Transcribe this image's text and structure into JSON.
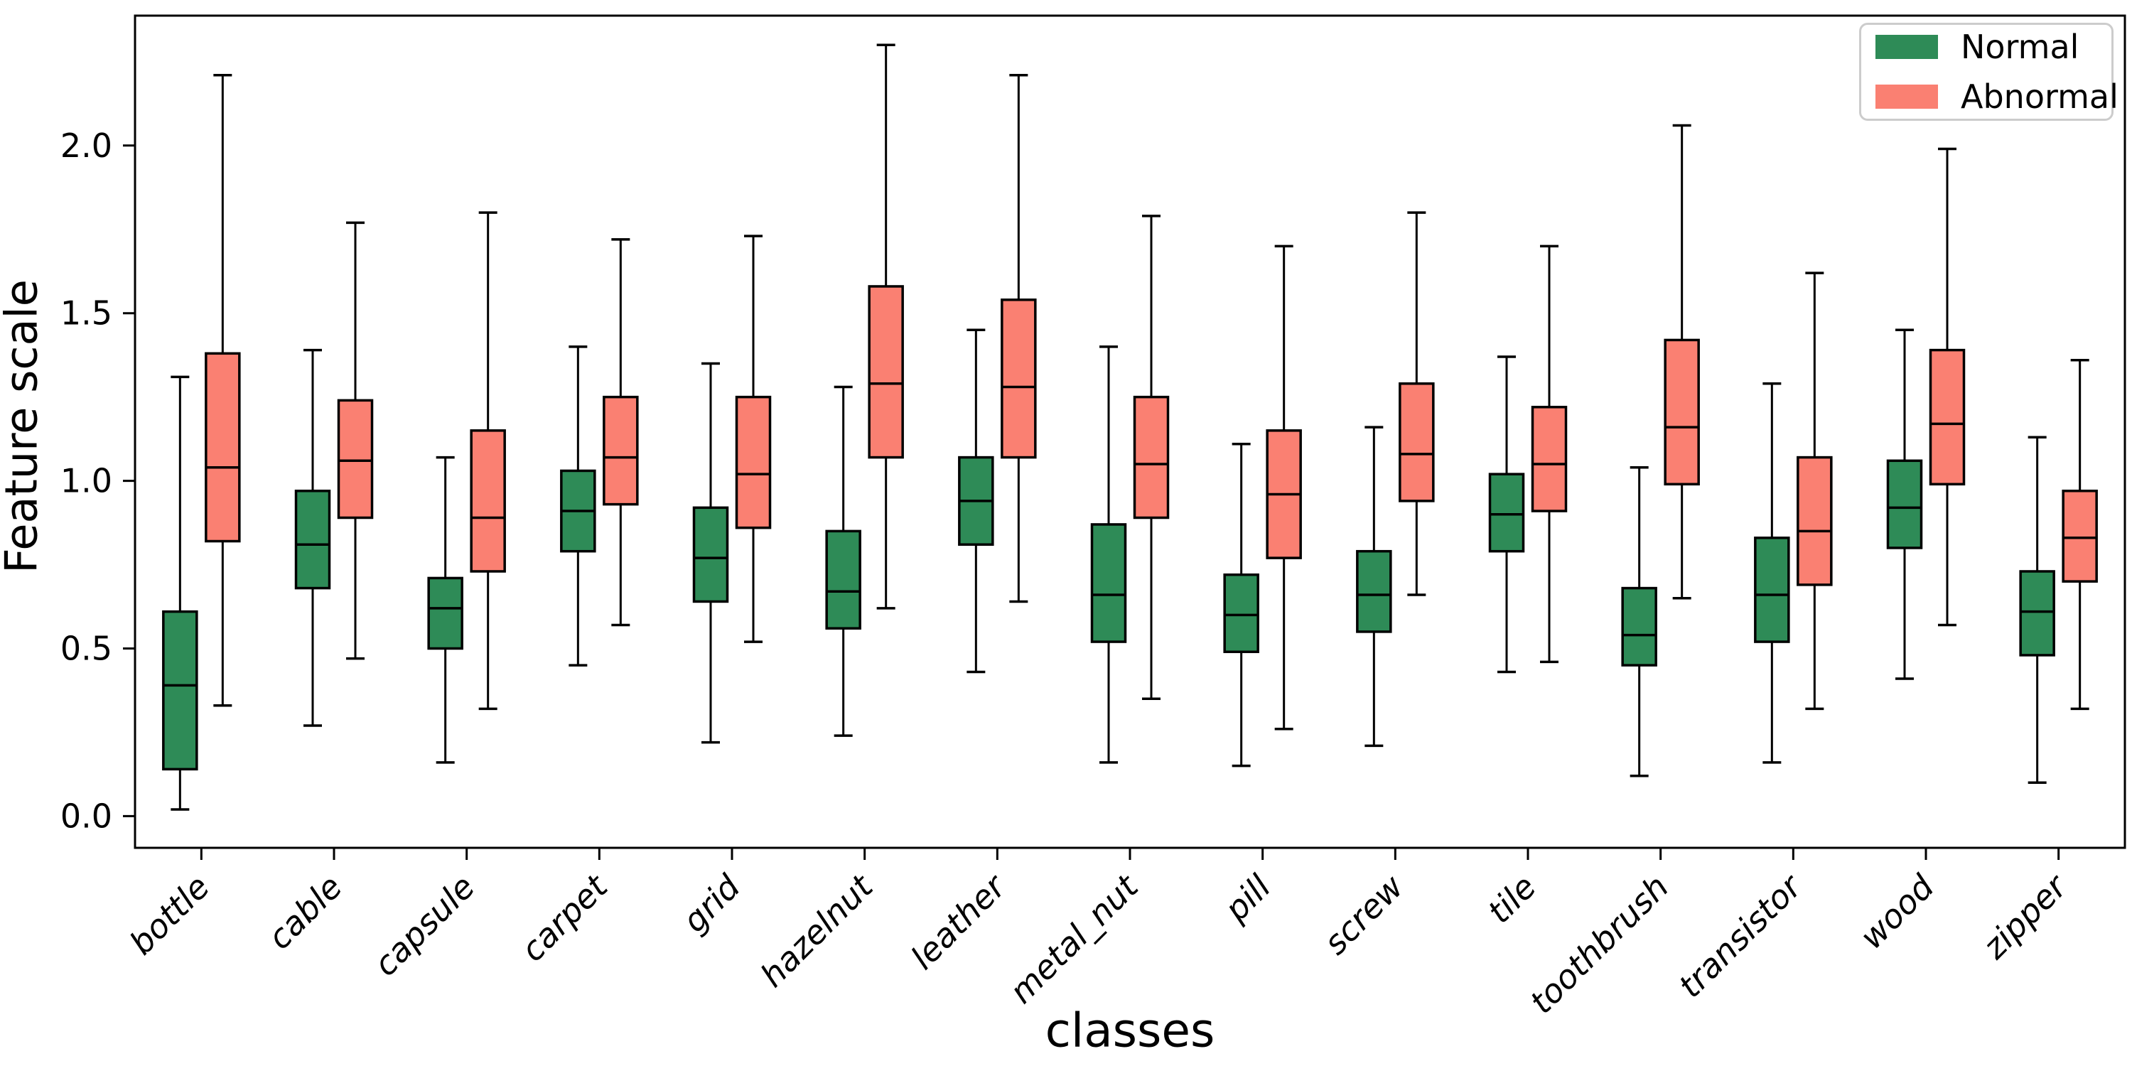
{
  "chart_data": {
    "type": "box",
    "title": "",
    "xlabel": "classes",
    "ylabel": "Feature scale",
    "categories": [
      "bottle",
      "cable",
      "capsule",
      "carpet",
      "grid",
      "hazelnut",
      "leather",
      "metal_nut",
      "pill",
      "screw",
      "tile",
      "toothbrush",
      "transistor",
      "wood",
      "zipper"
    ],
    "yticks": [
      {
        "label": "0.0",
        "value": 0.0
      },
      {
        "label": "0.5",
        "value": 0.5
      },
      {
        "label": "1.0",
        "value": 1.0
      },
      {
        "label": "1.5",
        "value": 1.5
      },
      {
        "label": "2.0",
        "value": 2.0
      }
    ],
    "ylim": [
      -0.09,
      2.39
    ],
    "grid": false,
    "legend": {
      "position": "upper right",
      "entries": [
        {
          "label": "Normal",
          "color": "#2e8b57"
        },
        {
          "label": "Abnormal",
          "color": "#fa8072"
        }
      ]
    },
    "box_edge_color": "#000000",
    "series": [
      {
        "name": "Normal",
        "color": "#2e8b57",
        "boxes": [
          {
            "category": "bottle",
            "whislo": 0.02,
            "q1": 0.14,
            "med": 0.39,
            "q3": 0.61,
            "whishi": 1.31
          },
          {
            "category": "cable",
            "whislo": 0.27,
            "q1": 0.68,
            "med": 0.81,
            "q3": 0.97,
            "whishi": 1.39
          },
          {
            "category": "capsule",
            "whislo": 0.16,
            "q1": 0.5,
            "med": 0.62,
            "q3": 0.71,
            "whishi": 1.07
          },
          {
            "category": "carpet",
            "whislo": 0.45,
            "q1": 0.79,
            "med": 0.91,
            "q3": 1.03,
            "whishi": 1.4
          },
          {
            "category": "grid",
            "whislo": 0.22,
            "q1": 0.64,
            "med": 0.77,
            "q3": 0.92,
            "whishi": 1.35
          },
          {
            "category": "hazelnut",
            "whislo": 0.24,
            "q1": 0.56,
            "med": 0.67,
            "q3": 0.85,
            "whishi": 1.28
          },
          {
            "category": "leather",
            "whislo": 0.43,
            "q1": 0.81,
            "med": 0.94,
            "q3": 1.07,
            "whishi": 1.45
          },
          {
            "category": "metal_nut",
            "whislo": 0.16,
            "q1": 0.52,
            "med": 0.66,
            "q3": 0.87,
            "whishi": 1.4
          },
          {
            "category": "pill",
            "whislo": 0.15,
            "q1": 0.49,
            "med": 0.6,
            "q3": 0.72,
            "whishi": 1.11
          },
          {
            "category": "screw",
            "whislo": 0.21,
            "q1": 0.55,
            "med": 0.66,
            "q3": 0.79,
            "whishi": 1.16
          },
          {
            "category": "tile",
            "whislo": 0.43,
            "q1": 0.79,
            "med": 0.9,
            "q3": 1.02,
            "whishi": 1.37
          },
          {
            "category": "toothbrush",
            "whislo": 0.12,
            "q1": 0.45,
            "med": 0.54,
            "q3": 0.68,
            "whishi": 1.04
          },
          {
            "category": "transistor",
            "whislo": 0.16,
            "q1": 0.52,
            "med": 0.66,
            "q3": 0.83,
            "whishi": 1.29
          },
          {
            "category": "wood",
            "whislo": 0.41,
            "q1": 0.8,
            "med": 0.92,
            "q3": 1.06,
            "whishi": 1.45
          },
          {
            "category": "zipper",
            "whislo": 0.1,
            "q1": 0.48,
            "med": 0.61,
            "q3": 0.73,
            "whishi": 1.13
          }
        ]
      },
      {
        "name": "Abnormal",
        "color": "#fa8072",
        "boxes": [
          {
            "category": "bottle",
            "whislo": 0.33,
            "q1": 0.82,
            "med": 1.04,
            "q3": 1.38,
            "whishi": 2.21
          },
          {
            "category": "cable",
            "whislo": 0.47,
            "q1": 0.89,
            "med": 1.06,
            "q3": 1.24,
            "whishi": 1.77
          },
          {
            "category": "capsule",
            "whislo": 0.32,
            "q1": 0.73,
            "med": 0.89,
            "q3": 1.15,
            "whishi": 1.8
          },
          {
            "category": "carpet",
            "whislo": 0.57,
            "q1": 0.93,
            "med": 1.07,
            "q3": 1.25,
            "whishi": 1.72
          },
          {
            "category": "grid",
            "whislo": 0.52,
            "q1": 0.86,
            "med": 1.02,
            "q3": 1.25,
            "whishi": 1.73
          },
          {
            "category": "hazelnut",
            "whislo": 0.62,
            "q1": 1.07,
            "med": 1.29,
            "q3": 1.58,
            "whishi": 2.3
          },
          {
            "category": "leather",
            "whislo": 0.64,
            "q1": 1.07,
            "med": 1.28,
            "q3": 1.54,
            "whishi": 2.21
          },
          {
            "category": "metal_nut",
            "whislo": 0.35,
            "q1": 0.89,
            "med": 1.05,
            "q3": 1.25,
            "whishi": 1.79
          },
          {
            "category": "pill",
            "whislo": 0.26,
            "q1": 0.77,
            "med": 0.96,
            "q3": 1.15,
            "whishi": 1.7
          },
          {
            "category": "screw",
            "whislo": 0.66,
            "q1": 0.94,
            "med": 1.08,
            "q3": 1.29,
            "whishi": 1.8
          },
          {
            "category": "tile",
            "whislo": 0.46,
            "q1": 0.91,
            "med": 1.05,
            "q3": 1.22,
            "whishi": 1.7
          },
          {
            "category": "toothbrush",
            "whislo": 0.65,
            "q1": 0.99,
            "med": 1.16,
            "q3": 1.42,
            "whishi": 2.06
          },
          {
            "category": "transistor",
            "whislo": 0.32,
            "q1": 0.69,
            "med": 0.85,
            "q3": 1.07,
            "whishi": 1.62
          },
          {
            "category": "wood",
            "whislo": 0.57,
            "q1": 0.99,
            "med": 1.17,
            "q3": 1.39,
            "whishi": 1.99
          },
          {
            "category": "zipper",
            "whislo": 0.32,
            "q1": 0.7,
            "med": 0.83,
            "q3": 0.97,
            "whishi": 1.36
          }
        ]
      }
    ]
  }
}
